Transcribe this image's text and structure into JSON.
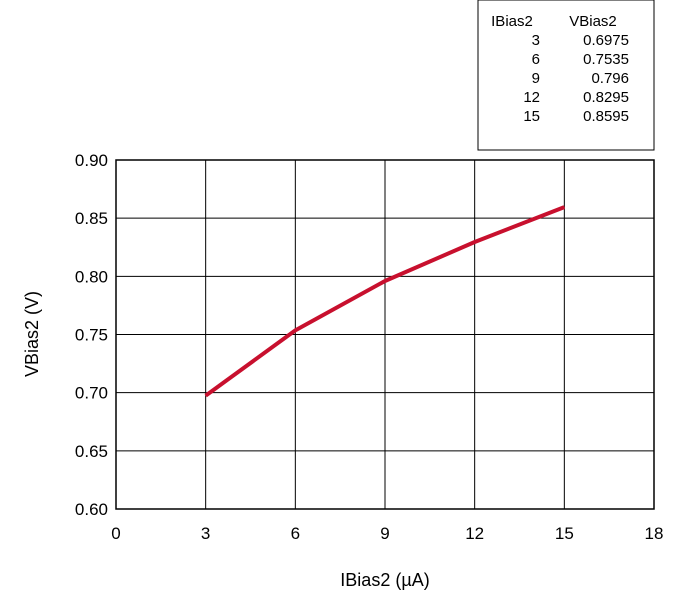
{
  "chart_data": {
    "type": "line",
    "xlabel": "IBias2 (µA)",
    "ylabel": "VBias2 (V)",
    "xlim": [
      0,
      18
    ],
    "ylim": [
      0.6,
      0.9
    ],
    "xticks": [
      "0",
      "3",
      "6",
      "9",
      "12",
      "15",
      "18"
    ],
    "yticks": [
      "0.60",
      "0.65",
      "0.70",
      "0.75",
      "0.80",
      "0.85",
      "0.90"
    ],
    "grid": true,
    "series": [
      {
        "x": [
          3,
          6,
          9,
          12,
          15
        ],
        "y": [
          0.6975,
          0.7535,
          0.796,
          0.8295,
          0.8595
        ],
        "color": "#c8102e"
      }
    ],
    "data_table": {
      "headers": [
        "IBias2",
        "VBias2"
      ],
      "rows": [
        [
          "3",
          "0.6975"
        ],
        [
          "6",
          "0.7535"
        ],
        [
          "9",
          "0.796"
        ],
        [
          "12",
          "0.8295"
        ],
        [
          "15",
          "0.8595"
        ]
      ]
    }
  }
}
